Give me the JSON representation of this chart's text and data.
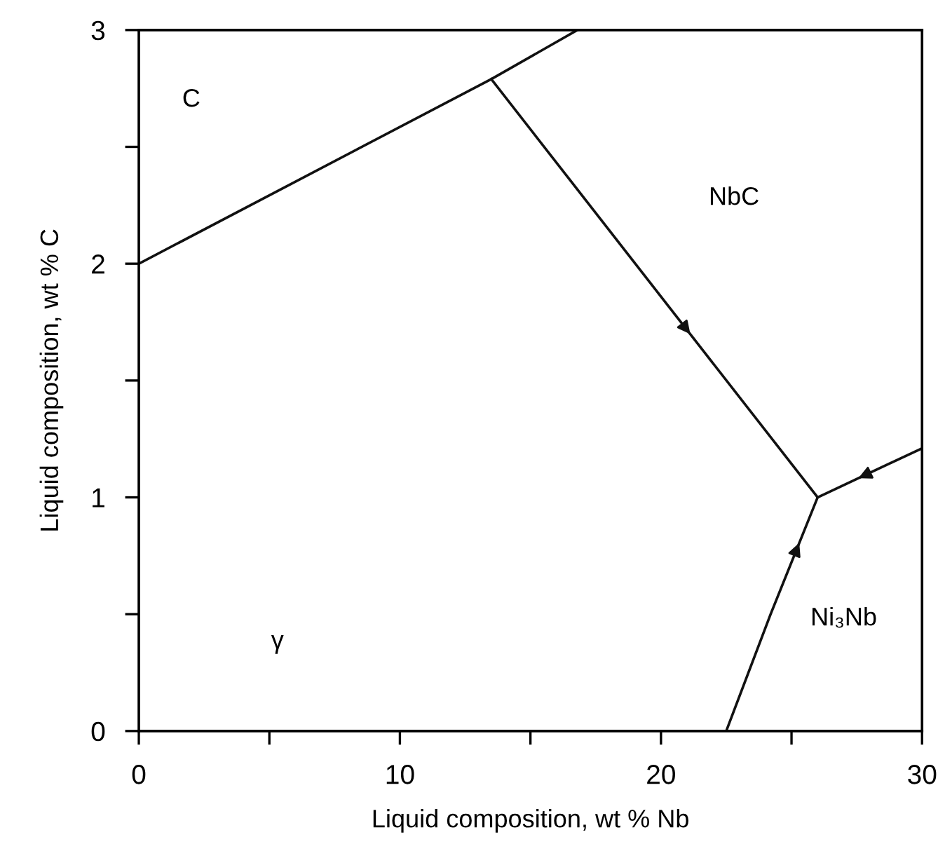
{
  "chart_data": {
    "type": "line",
    "xlabel": "Liquid composition, wt % Nb",
    "ylabel": "Liquid composition, wt % C",
    "series": [
      {
        "color": "#111111",
        "x": [
          0,
          13.5,
          16.8
        ],
        "values": [
          2.0,
          2.79,
          3.0
        ]
      },
      {
        "color": "#111111",
        "x": [
          13.5,
          26
        ],
        "values": [
          2.79,
          1.0
        ]
      },
      {
        "color": "#111111",
        "x": [
          22.5,
          24.2,
          26
        ],
        "values": [
          0,
          0.5,
          1.0
        ]
      },
      {
        "color": "#111111",
        "x": [
          30,
          26
        ],
        "values": [
          1.21,
          1.0
        ]
      }
    ],
    "annotations": [
      "C",
      "NbC",
      "γ",
      "Ni₃Nb"
    ],
    "xlim": [
      0,
      30
    ],
    "ylim": [
      0,
      3
    ],
    "xticks": [
      0,
      {
        "value": 5,
        "label": null
      },
      10,
      {
        "value": 15,
        "label": null
      },
      20,
      {
        "value": 25,
        "label": null
      },
      30
    ],
    "yticks": [
      0,
      {
        "value": 0.5,
        "label": null
      },
      1,
      {
        "value": 1.5,
        "label": null
      },
      2,
      {
        "value": 2.5,
        "label": null
      },
      3
    ],
    "grid": false,
    "legend": false,
    "marker": "none",
    "line_style": "solid"
  }
}
